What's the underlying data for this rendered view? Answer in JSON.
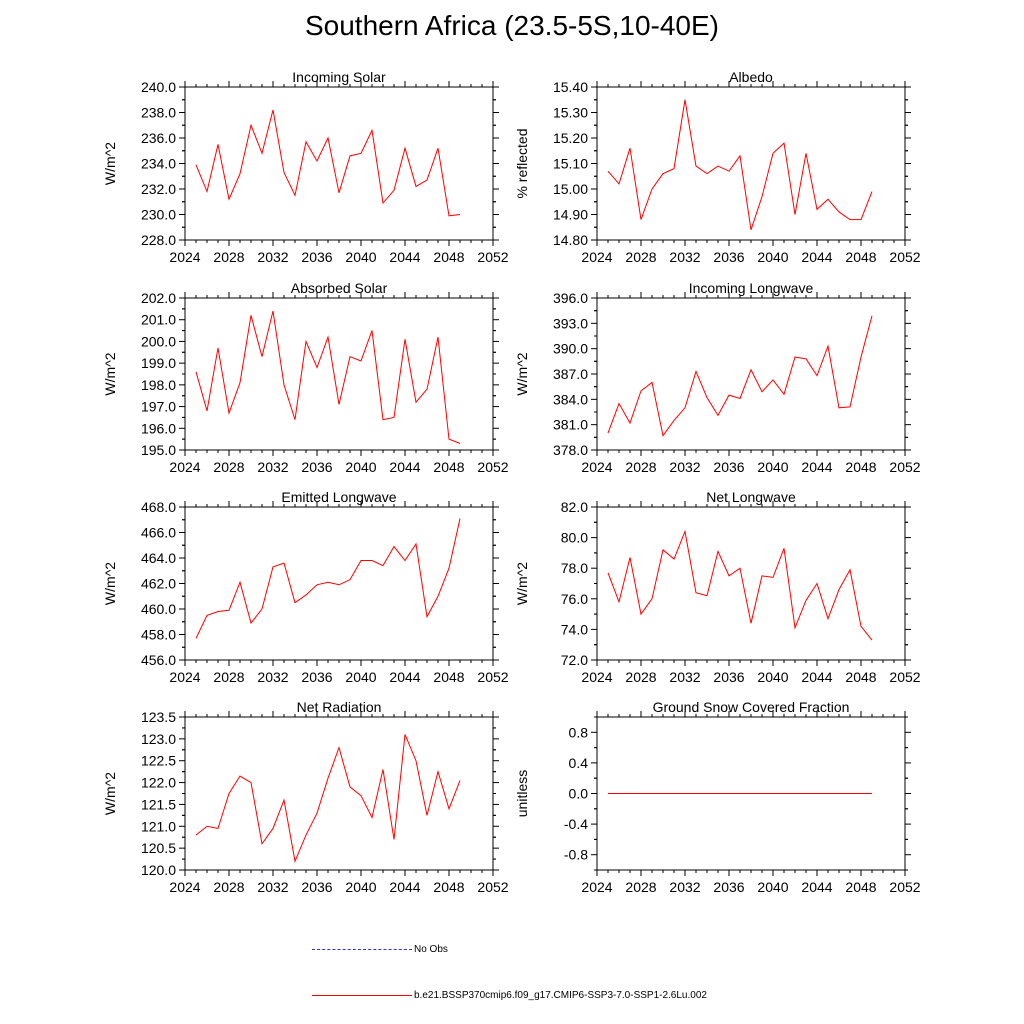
{
  "title": "Southern Africa (23.5-5S,10-40E)",
  "chart_data": [
    {
      "type": "line",
      "title": "Incoming Solar",
      "ylabel": "W/m^2",
      "xlim": [
        2024,
        2052
      ],
      "ylim": [
        228.0,
        240.0
      ],
      "xticks": [
        2024,
        2028,
        2032,
        2036,
        2040,
        2044,
        2048,
        2052
      ],
      "yticks": [
        "228.0",
        "230.0",
        "232.0",
        "234.0",
        "236.0",
        "238.0",
        "240.0"
      ],
      "x": [
        2025,
        2026,
        2027,
        2028,
        2029,
        2030,
        2031,
        2032,
        2033,
        2034,
        2035,
        2036,
        2037,
        2038,
        2039,
        2040,
        2041,
        2042,
        2043,
        2044,
        2045,
        2046,
        2047,
        2048,
        2049
      ],
      "series": [
        {
          "color": "#ff0000",
          "values": [
            233.9,
            231.8,
            235.5,
            231.2,
            233.2,
            237.0,
            234.8,
            238.2,
            233.3,
            231.5,
            235.7,
            234.2,
            236.0,
            231.7,
            234.6,
            234.8,
            236.6,
            230.9,
            231.9,
            235.2,
            232.2,
            232.7,
            235.2,
            229.9,
            230.0
          ]
        }
      ]
    },
    {
      "type": "line",
      "title": "Albedo",
      "ylabel": "% reflected",
      "xlim": [
        2024,
        2052
      ],
      "ylim": [
        14.8,
        15.4
      ],
      "xticks": [
        2024,
        2028,
        2032,
        2036,
        2040,
        2044,
        2048,
        2052
      ],
      "yticks": [
        "14.80",
        "14.90",
        "15.00",
        "15.10",
        "15.20",
        "15.30",
        "15.40"
      ],
      "x": [
        2025,
        2026,
        2027,
        2028,
        2029,
        2030,
        2031,
        2032,
        2033,
        2034,
        2035,
        2036,
        2037,
        2038,
        2039,
        2040,
        2041,
        2042,
        2043,
        2044,
        2045,
        2046,
        2047,
        2048,
        2049
      ],
      "series": [
        {
          "color": "#ff0000",
          "values": [
            15.07,
            15.02,
            15.16,
            14.88,
            15.0,
            15.06,
            15.08,
            15.35,
            15.09,
            15.06,
            15.09,
            15.07,
            15.13,
            14.84,
            14.97,
            15.14,
            15.18,
            14.9,
            15.14,
            14.92,
            14.96,
            14.91,
            14.88,
            14.88,
            14.99
          ]
        }
      ]
    },
    {
      "type": "line",
      "title": "Absorbed Solar",
      "ylabel": "W/m^2",
      "xlim": [
        2024,
        2052
      ],
      "ylim": [
        195.0,
        202.0
      ],
      "xticks": [
        2024,
        2028,
        2032,
        2036,
        2040,
        2044,
        2048,
        2052
      ],
      "yticks": [
        "195.0",
        "196.0",
        "197.0",
        "198.0",
        "199.0",
        "200.0",
        "201.0",
        "202.0"
      ],
      "x": [
        2025,
        2026,
        2027,
        2028,
        2029,
        2030,
        2031,
        2032,
        2033,
        2034,
        2035,
        2036,
        2037,
        2038,
        2039,
        2040,
        2041,
        2042,
        2043,
        2044,
        2045,
        2046,
        2047,
        2048,
        2049
      ],
      "series": [
        {
          "color": "#ff0000",
          "values": [
            198.6,
            196.8,
            199.7,
            196.7,
            198.1,
            201.2,
            199.3,
            201.4,
            198.0,
            196.4,
            200.0,
            198.8,
            200.2,
            197.1,
            199.3,
            199.1,
            200.5,
            196.4,
            196.5,
            200.1,
            197.2,
            197.8,
            200.2,
            195.5,
            195.3
          ]
        }
      ]
    },
    {
      "type": "line",
      "title": "Incoming Longwave",
      "ylabel": "W/m^2",
      "xlim": [
        2024,
        2052
      ],
      "ylim": [
        378.0,
        396.0
      ],
      "xticks": [
        2024,
        2028,
        2032,
        2036,
        2040,
        2044,
        2048,
        2052
      ],
      "yticks": [
        "378.0",
        "381.0",
        "384.0",
        "387.0",
        "390.0",
        "393.0",
        "396.0"
      ],
      "x": [
        2025,
        2026,
        2027,
        2028,
        2029,
        2030,
        2031,
        2032,
        2033,
        2034,
        2035,
        2036,
        2037,
        2038,
        2039,
        2040,
        2041,
        2042,
        2043,
        2044,
        2045,
        2046,
        2047,
        2048,
        2049
      ],
      "series": [
        {
          "color": "#ff0000",
          "values": [
            380.0,
            383.5,
            381.2,
            385.0,
            386.0,
            379.7,
            381.5,
            383.0,
            387.3,
            384.2,
            382.1,
            384.5,
            384.1,
            387.5,
            384.9,
            386.3,
            384.6,
            389.0,
            388.8,
            386.8,
            390.3,
            383.0,
            383.1,
            389.0,
            393.9
          ]
        }
      ]
    },
    {
      "type": "line",
      "title": "Emitted Longwave",
      "ylabel": "W/m^2",
      "xlim": [
        2024,
        2052
      ],
      "ylim": [
        456.0,
        468.0
      ],
      "xticks": [
        2024,
        2028,
        2032,
        2036,
        2040,
        2044,
        2048,
        2052
      ],
      "yticks": [
        "456.0",
        "458.0",
        "460.0",
        "462.0",
        "464.0",
        "466.0",
        "468.0"
      ],
      "x": [
        2025,
        2026,
        2027,
        2028,
        2029,
        2030,
        2031,
        2032,
        2033,
        2034,
        2035,
        2036,
        2037,
        2038,
        2039,
        2040,
        2041,
        2042,
        2043,
        2044,
        2045,
        2046,
        2047,
        2048,
        2049
      ],
      "series": [
        {
          "color": "#ff0000",
          "values": [
            457.7,
            459.5,
            459.8,
            459.9,
            462.1,
            458.9,
            460.0,
            463.3,
            463.6,
            460.5,
            461.1,
            461.9,
            462.1,
            461.9,
            462.3,
            463.8,
            463.8,
            463.4,
            464.9,
            463.8,
            465.1,
            459.4,
            461.0,
            463.2,
            467.1
          ]
        }
      ]
    },
    {
      "type": "line",
      "title": "Net Longwave",
      "ylabel": "W/m^2",
      "xlim": [
        2024,
        2052
      ],
      "ylim": [
        72.0,
        82.0
      ],
      "xticks": [
        2024,
        2028,
        2032,
        2036,
        2040,
        2044,
        2048,
        2052
      ],
      "yticks": [
        "72.0",
        "74.0",
        "76.0",
        "78.0",
        "80.0",
        "82.0"
      ],
      "x": [
        2025,
        2026,
        2027,
        2028,
        2029,
        2030,
        2031,
        2032,
        2033,
        2034,
        2035,
        2036,
        2037,
        2038,
        2039,
        2040,
        2041,
        2042,
        2043,
        2044,
        2045,
        2046,
        2047,
        2048,
        2049
      ],
      "series": [
        {
          "color": "#ff0000",
          "values": [
            77.7,
            75.8,
            78.7,
            75.0,
            76.0,
            79.2,
            78.6,
            80.4,
            76.4,
            76.2,
            79.1,
            77.5,
            78.0,
            74.4,
            77.5,
            77.4,
            79.3,
            74.1,
            75.9,
            77.0,
            74.7,
            76.6,
            77.9,
            74.2,
            73.3
          ]
        }
      ]
    },
    {
      "type": "line",
      "title": "Net Radiation",
      "ylabel": "W/m^2",
      "xlim": [
        2024,
        2052
      ],
      "ylim": [
        120.0,
        123.5
      ],
      "xticks": [
        2024,
        2028,
        2032,
        2036,
        2040,
        2044,
        2048,
        2052
      ],
      "yticks": [
        "120.0",
        "120.5",
        "121.0",
        "121.5",
        "122.0",
        "122.5",
        "123.0",
        "123.5"
      ],
      "x": [
        2025,
        2026,
        2027,
        2028,
        2029,
        2030,
        2031,
        2032,
        2033,
        2034,
        2035,
        2036,
        2037,
        2038,
        2039,
        2040,
        2041,
        2042,
        2043,
        2044,
        2045,
        2046,
        2047,
        2048,
        2049
      ],
      "series": [
        {
          "color": "#ff0000",
          "values": [
            120.8,
            121.0,
            120.95,
            121.75,
            122.15,
            122.0,
            120.6,
            120.95,
            121.6,
            120.2,
            120.8,
            121.3,
            122.1,
            122.8,
            121.9,
            121.7,
            121.2,
            122.3,
            120.7,
            123.1,
            122.5,
            121.25,
            122.25,
            121.4,
            122.05
          ]
        }
      ]
    },
    {
      "type": "line",
      "title": "Ground Snow Covered Fraction",
      "ylabel": "unitless",
      "xlim": [
        2024,
        2052
      ],
      "ylim": [
        -1.0,
        1.0
      ],
      "xticks": [
        2024,
        2028,
        2032,
        2036,
        2040,
        2044,
        2048,
        2052
      ],
      "yticks": [
        "-0.8",
        "-0.4",
        "0.0",
        "0.4",
        "0.8"
      ],
      "x": [
        2025,
        2026,
        2027,
        2028,
        2029,
        2030,
        2031,
        2032,
        2033,
        2034,
        2035,
        2036,
        2037,
        2038,
        2039,
        2040,
        2041,
        2042,
        2043,
        2044,
        2045,
        2046,
        2047,
        2048,
        2049
      ],
      "series": [
        {
          "color": "#ff0000",
          "values": [
            0,
            0,
            0,
            0,
            0,
            0,
            0,
            0,
            0,
            0,
            0,
            0,
            0,
            0,
            0,
            0,
            0,
            0,
            0,
            0,
            0,
            0,
            0,
            0,
            0
          ]
        }
      ]
    }
  ],
  "legend": [
    {
      "label": "No Obs",
      "color": "#3333cc",
      "style": "dashed"
    },
    {
      "label": "b.e21.BSSP370cmip6.f09_g17.CMIP6-SSP3-7.0-SSP1-2.6Lu.002",
      "color": "#ff0000",
      "style": "solid"
    }
  ]
}
